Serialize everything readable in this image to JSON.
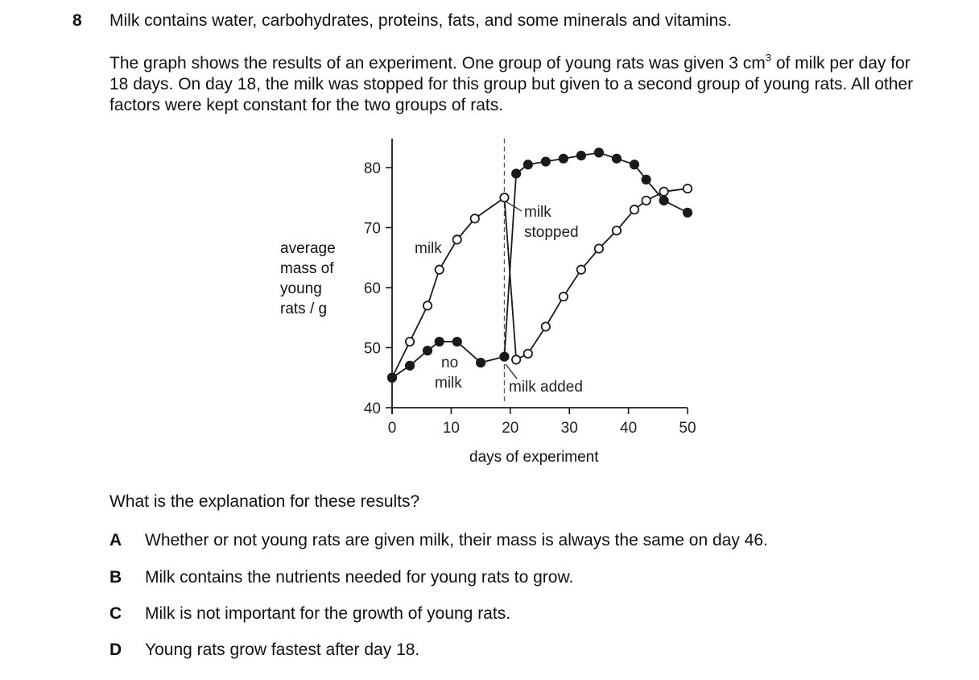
{
  "question": {
    "number": "8",
    "intro": "Milk contains water, carbohydrates, proteins, fats, and some minerals and vitamins.",
    "context_before_volume": "The graph shows the results of an experiment. One group of young rats was given 3 cm",
    "context_superscript": "3",
    "context_after_volume": " of milk per day for 18 days. On day 18, the milk was stopped for this group but given to a second group of young rats. All other factors were kept constant for the two groups of rats.",
    "prompt": "What is the explanation for these results?",
    "options": [
      {
        "letter": "A",
        "text": "Whether or not young rats are given milk, their mass is always the same on day 46."
      },
      {
        "letter": "B",
        "text": "Milk contains the nutrients needed for young rats to grow."
      },
      {
        "letter": "C",
        "text": "Milk is not important for the growth of young rats."
      },
      {
        "letter": "D",
        "text": "Young rats grow fastest after day 18."
      }
    ]
  },
  "chart_data": {
    "type": "line",
    "xlabel": "days of experiment",
    "ylabel": "average\nmass of\nyoung\nrats / g",
    "xlim": [
      0,
      50
    ],
    "ylim": [
      40,
      80
    ],
    "xticks": [
      0,
      10,
      20,
      30,
      40,
      50
    ],
    "yticks": [
      40,
      50,
      60,
      70,
      80
    ],
    "reference_line_x": 19,
    "series": [
      {
        "marker": "open",
        "x": [
          0,
          3,
          6,
          8,
          11,
          14,
          19,
          21,
          23,
          26,
          29,
          32,
          35,
          38,
          41,
          43,
          46,
          50
        ],
        "y": [
          45,
          51,
          57,
          63,
          68,
          71.5,
          75,
          48,
          49,
          53.5,
          58.5,
          63,
          66.5,
          69.5,
          73,
          74.5,
          76,
          76.5
        ]
      },
      {
        "marker": "filled",
        "x": [
          0,
          3,
          6,
          8,
          11,
          15,
          19,
          21,
          23,
          26,
          29,
          32,
          35,
          38,
          41,
          43,
          46,
          50
        ],
        "y": [
          45,
          47,
          49.5,
          51,
          51,
          47.5,
          48.5,
          79,
          80.5,
          81,
          81.5,
          82,
          82.5,
          81.5,
          80.5,
          78,
          74.5,
          72.5
        ]
      }
    ],
    "annotations": {
      "milk": "milk",
      "no_milk_line1": "no",
      "no_milk_line2": "milk",
      "milk_stopped_line1": "milk",
      "milk_stopped_line2": "stopped",
      "milk_added": "milk added"
    }
  }
}
